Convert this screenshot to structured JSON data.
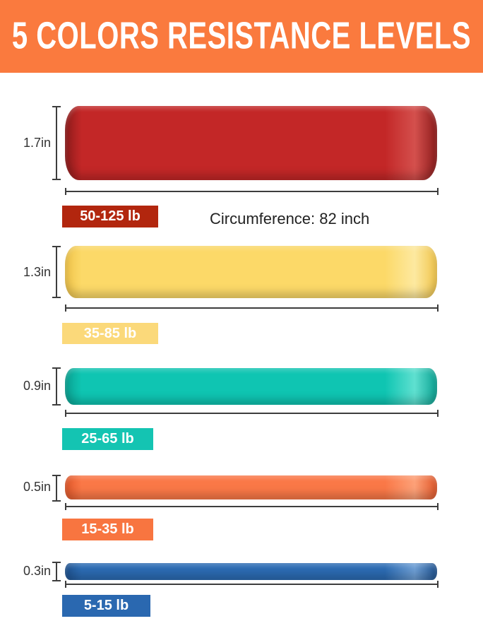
{
  "header": {
    "title": "5 COLORS RESISTANCE LEVELS",
    "bg_color": "#fa7a3e",
    "text_color": "#ffffff"
  },
  "circumference": {
    "label": "Circumference: 82 inch"
  },
  "bands": [
    {
      "id": "red",
      "height_label": "1.7in",
      "weight_label": "50-125 lb",
      "colors": {
        "base": "#c32727",
        "dark": "#8e1c1c",
        "light": "#d4504d",
        "badge_bg": "#b2260e",
        "badge_text": "#ffffff"
      }
    },
    {
      "id": "yellow",
      "height_label": "1.3in",
      "weight_label": "35-85 lb",
      "colors": {
        "base": "#fcd968",
        "dark": "#f0c44a",
        "light": "#fde9a0",
        "badge_bg": "#fbd97a",
        "badge_text": "#ffffff"
      }
    },
    {
      "id": "teal",
      "height_label": "0.9in",
      "weight_label": "25-65 lb",
      "colors": {
        "base": "#0fc5b2",
        "dark": "#0ba393",
        "light": "#5fe0d0",
        "badge_bg": "#14c4b2",
        "badge_text": "#ffffff"
      }
    },
    {
      "id": "orange",
      "height_label": "0.5in",
      "weight_label": "15-35 lb",
      "colors": {
        "base": "#fa7847",
        "dark": "#e2582a",
        "light": "#fda178",
        "badge_bg": "#f87540",
        "badge_text": "#ffffff"
      }
    },
    {
      "id": "blue",
      "height_label": "0.3in",
      "weight_label": "5-15 lb",
      "colors": {
        "base": "#2c6cb4",
        "dark": "#1f5493",
        "light": "#6fa0d6",
        "badge_bg": "#2a68b0",
        "badge_text": "#ffffff"
      }
    }
  ]
}
